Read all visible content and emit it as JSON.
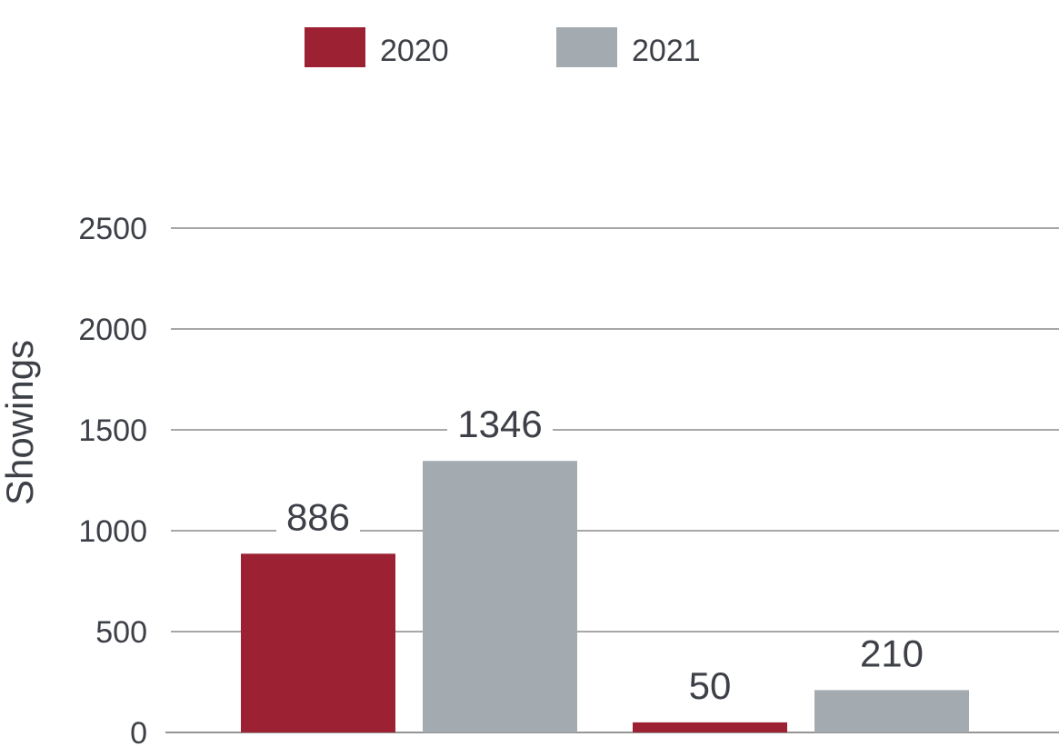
{
  "chart_data": {
    "type": "bar",
    "title": "",
    "xlabel": "",
    "ylabel": "Showings",
    "ylim": [
      0,
      2500
    ],
    "yticks": [
      0,
      500,
      1000,
      1500,
      2000,
      2500
    ],
    "categories": [
      "",
      ""
    ],
    "grid": true,
    "legend_position": "top",
    "series": [
      {
        "name": "2020",
        "color": "#9c2132",
        "values": [
          886,
          50
        ],
        "labels": [
          "886",
          "50"
        ]
      },
      {
        "name": "2021",
        "color": "#a3abb1",
        "values": [
          1346,
          210
        ],
        "labels": [
          "1346",
          "210"
        ]
      }
    ]
  }
}
